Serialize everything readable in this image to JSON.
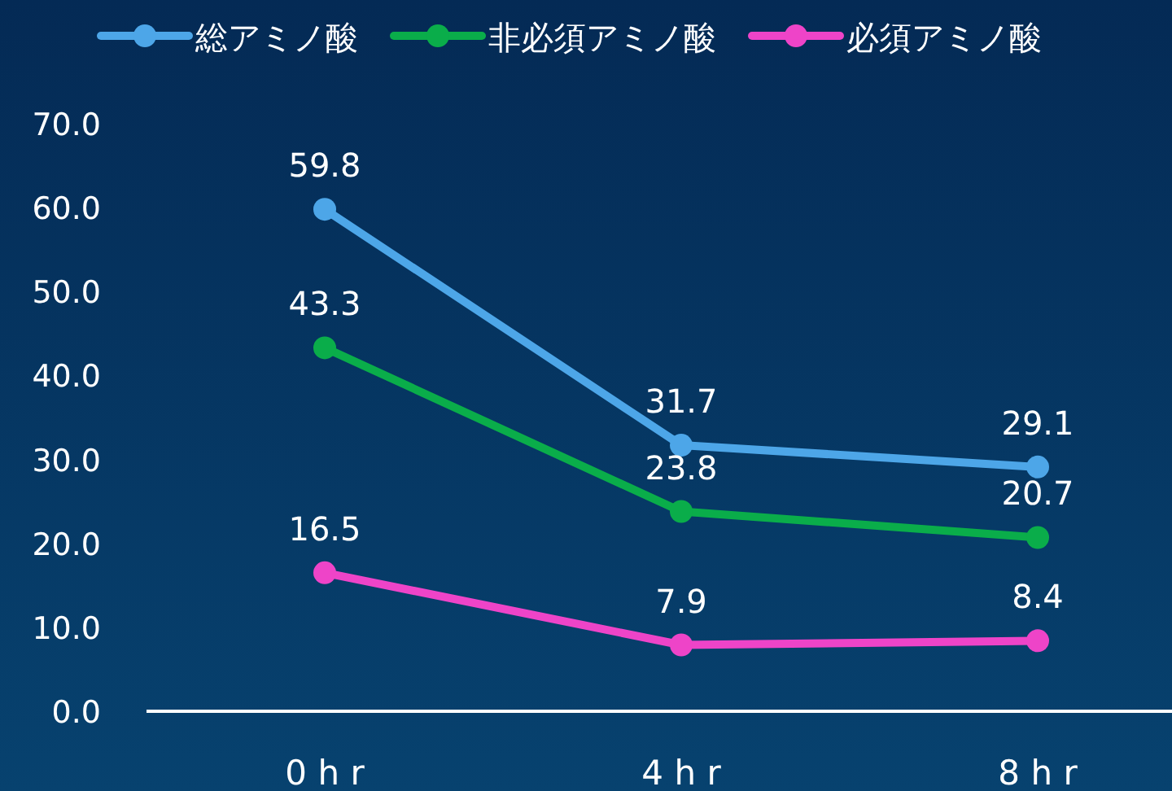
{
  "chart_data": {
    "type": "line",
    "categories": [
      "0 h r",
      "4 h r",
      "8 h r"
    ],
    "series": [
      {
        "name": "総アミノ酸",
        "color": "#4da6e8",
        "values": [
          59.8,
          31.7,
          29.1
        ]
      },
      {
        "name": "非必須アミノ酸",
        "color": "#0aad4a",
        "values": [
          43.3,
          23.8,
          20.7
        ]
      },
      {
        "name": "必須アミノ酸",
        "color": "#ee44c8",
        "values": [
          16.5,
          7.9,
          8.4
        ]
      }
    ],
    "ylim": [
      0,
      70
    ],
    "yticks": [
      {
        "value": 0,
        "label": "0.0"
      },
      {
        "value": 10,
        "label": "10.0"
      },
      {
        "value": 20,
        "label": "20.0"
      },
      {
        "value": 30,
        "label": "30.0"
      },
      {
        "value": 40,
        "label": "40.0"
      },
      {
        "value": 50,
        "label": "50.0"
      },
      {
        "value": 60,
        "label": "60.0"
      },
      {
        "value": 70,
        "label": "70.0"
      }
    ],
    "data_labels": true,
    "marker": "circle",
    "legend": "top",
    "grid": false
  }
}
